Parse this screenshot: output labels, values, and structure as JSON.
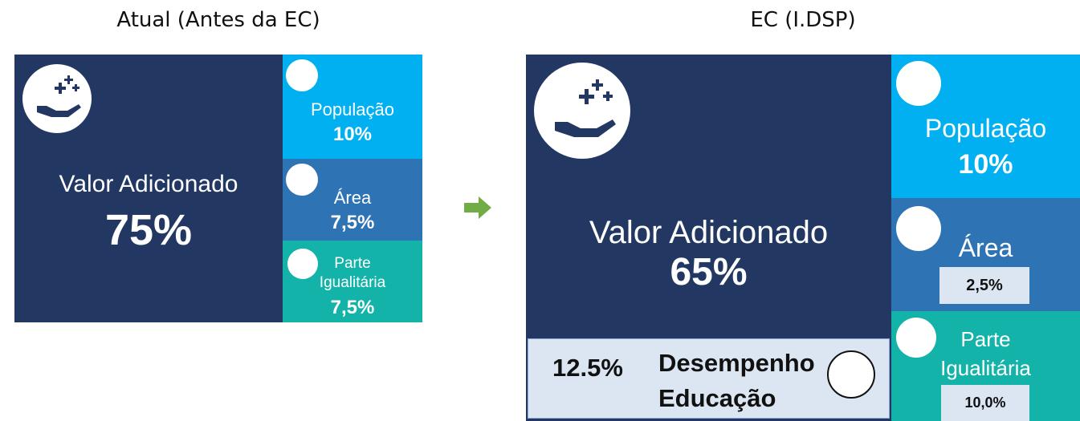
{
  "left": {
    "title": "Atual (Antes da EC)",
    "main": {
      "label": "Valor Adicionado",
      "value": "75%"
    },
    "populacao": {
      "label": "População",
      "value": "10%"
    },
    "area": {
      "label": "Área",
      "value": "7,5%"
    },
    "parte": {
      "label_lines": [
        "Parte",
        "Igualitária"
      ],
      "value": "7,5%"
    }
  },
  "right": {
    "title": "EC (I.DSP)",
    "main": {
      "label": "Valor Adicionado",
      "value": "65%"
    },
    "desempenho": {
      "value": "12.5%",
      "label_lines": [
        "Desempenho",
        "Educação"
      ]
    },
    "populacao": {
      "label": "População",
      "value": "10%"
    },
    "area": {
      "label": "Área",
      "value": "2,5%"
    },
    "parte": {
      "label_lines": [
        "Parte",
        "Igualitária"
      ],
      "value": "10,0%"
    }
  }
}
